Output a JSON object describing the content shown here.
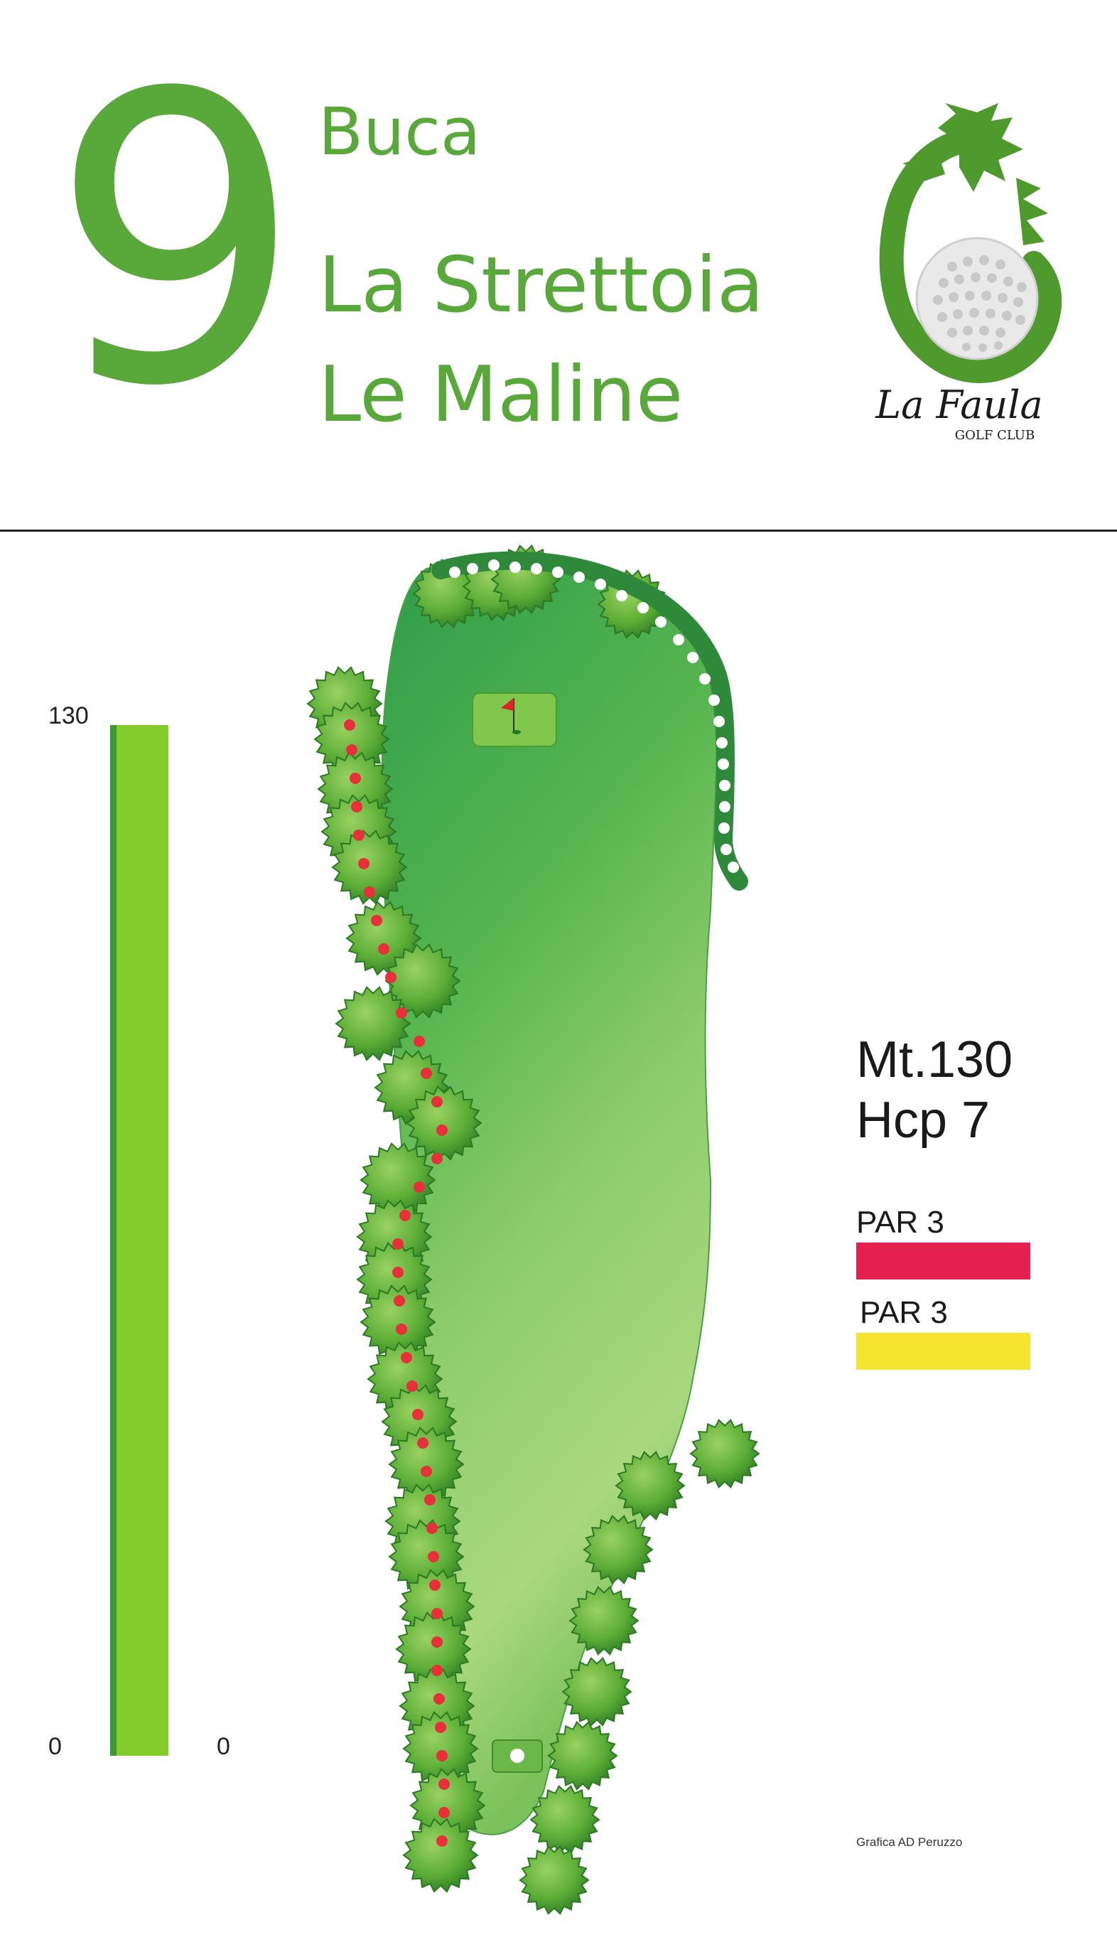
{
  "hole": {
    "number": "9",
    "label": "Buca",
    "name_line1": "La Strettoia",
    "name_line2": "Le Maline"
  },
  "logo": {
    "name": "La Faula",
    "subtitle": "GOLF CLUB",
    "icon": "dragon-golfball-logo"
  },
  "scale": {
    "top_label": "130",
    "bottom_left_label": "0",
    "bottom_right_label": "0",
    "max_m": 130
  },
  "stats": {
    "distance": "Mt.130",
    "handicap": "Hcp 7"
  },
  "tees": [
    {
      "label": "PAR 3",
      "color": "#e51f4f"
    },
    {
      "label": "PAR 3",
      "color": "#f5e52e"
    }
  ],
  "credit": "Grafica AD Peruzzo",
  "colors": {
    "brand_green": "#58a83a",
    "fairway_light": "#a8d77a",
    "fairway_dark": "#2e9a48",
    "bar_green": "#84cc2a",
    "out_of_bounds_red": "#e8303a"
  }
}
